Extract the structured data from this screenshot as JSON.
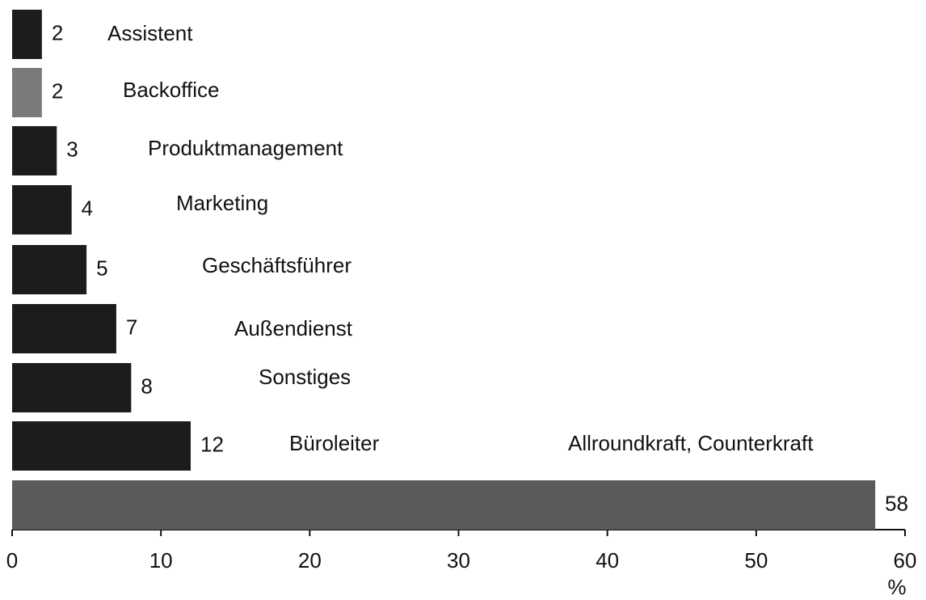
{
  "chart_data": {
    "type": "barh",
    "categories": [
      "Assistent",
      "Backoffice",
      "Produktmanagement",
      "Marketing",
      "Geschäftsführer",
      "Außendienst",
      "Sonstiges",
      "Büroleiter",
      "Allroundkraft, Counterkraft"
    ],
    "values": [
      2,
      2,
      3,
      4,
      5,
      7,
      8,
      12,
      58
    ],
    "colors": [
      "#1c1c1c",
      "#7a7a7a",
      "#1c1c1c",
      "#1c1c1c",
      "#1c1c1c",
      "#1c1c1c",
      "#1c1c1c",
      "#1c1c1c",
      "#5a5a5a"
    ],
    "xlim": [
      0,
      60
    ],
    "xticks": [
      0,
      10,
      20,
      30,
      40,
      50,
      60
    ],
    "x_label": "%",
    "grid": false
  }
}
